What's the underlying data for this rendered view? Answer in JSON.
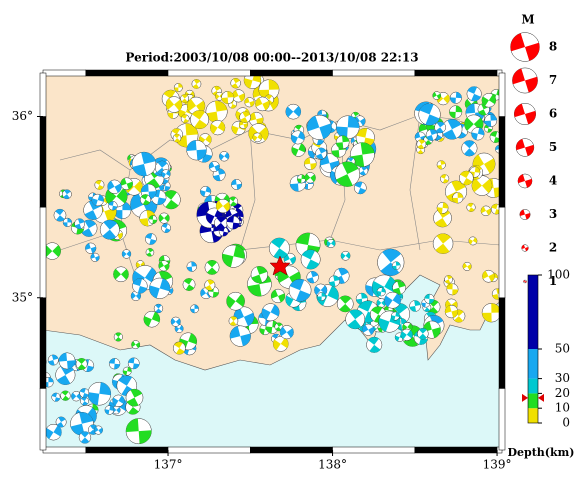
{
  "title": "Period:2003/10/08 00:00--2013/10/08 22:13",
  "map": {
    "xlim": [
      136.24,
      139.03
    ],
    "ylim": [
      34.16,
      36.24
    ],
    "xticks": [
      {
        "value": 137,
        "label": "137°"
      },
      {
        "value": 138,
        "label": "138°"
      },
      {
        "value": 139,
        "label": "139°"
      }
    ],
    "yticks": [
      {
        "value": 35,
        "label": "35°"
      },
      {
        "value": 36,
        "label": "36°"
      }
    ]
  },
  "magnitude_legend": {
    "title": "M",
    "values": [
      8,
      7,
      6,
      5,
      4,
      3,
      2,
      1
    ]
  },
  "depth_scale": {
    "label": "Depth(km)",
    "ylim": [
      0,
      100
    ],
    "ticks": [
      0,
      10,
      20,
      30,
      50,
      100
    ],
    "colors": [
      "#f0e000",
      "#22dd22",
      "#00c8d0",
      "#18a8f0",
      "#0000a8"
    ],
    "marker": 17
  }
}
